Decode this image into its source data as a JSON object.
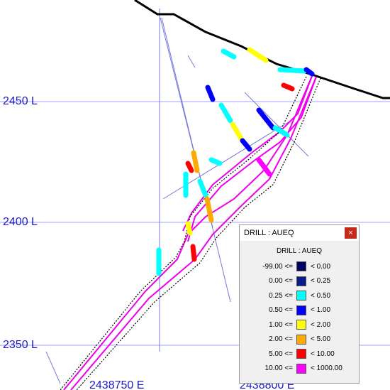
{
  "section": {
    "elevation_labels": [
      "2450 L",
      "2400 L",
      "2350 L"
    ],
    "easting_labels": [
      "2438750 E",
      "2438800 E"
    ]
  },
  "legend": {
    "window_title": "DRILL : AUEQ",
    "close": "×",
    "title": "DRILL : AUEQ",
    "rows": [
      {
        "low": "-99.00 <=",
        "high": "< 0.00",
        "color": "#000066"
      },
      {
        "low": "0.00 <=",
        "high": "< 0.25",
        "color": "#0a1a8a"
      },
      {
        "low": "0.25 <=",
        "high": "< 0.50",
        "color": "#00ffff"
      },
      {
        "low": "0.50 <=",
        "high": "< 1.00",
        "color": "#0000ff"
      },
      {
        "low": "1.00 <=",
        "high": "< 2.00",
        "color": "#ffff00"
      },
      {
        "low": "2.00 <=",
        "high": "< 5.00",
        "color": "#ffaa00"
      },
      {
        "low": "5.00 <=",
        "high": "< 10.00",
        "color": "#ff0000"
      },
      {
        "low": "10.00 <=",
        "high": "< 1000.00",
        "color": "#ff00ff"
      }
    ]
  }
}
